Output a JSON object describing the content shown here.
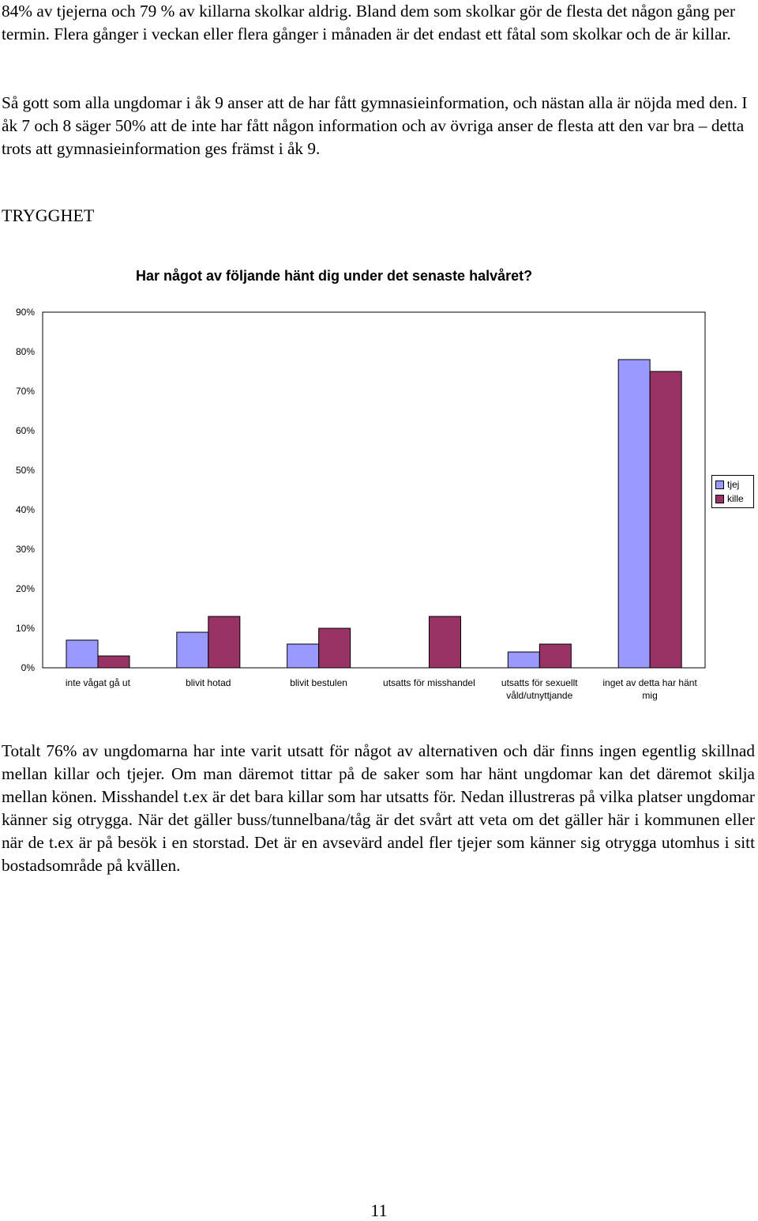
{
  "paragraphs": {
    "p1": "84% av tjejerna och 79 % av killarna skolkar aldrig. Bland dem som skolkar gör de flesta det någon gång per termin. Flera gånger i veckan eller flera gånger i månaden är det endast ett fåtal som skolkar och de är killar.",
    "p2": "Så gott som alla ungdomar i åk 9 anser att de har fått gymnasieinformation, och nästan alla är nöjda med den. I åk 7 och 8 säger 50% att de inte har fått någon information och av övriga anser de flesta att den var bra – detta trots att gymnasieinformation ges främst i åk 9.",
    "p3": "Totalt 76% av ungdomarna har inte varit utsatt för något av alternativen och där finns ingen egentlig skillnad mellan killar och tjejer. Om man däremot tittar på de saker som har hänt ungdomar kan det däremot skilja mellan könen. Misshandel t.ex är det bara killar som har utsatts för. Nedan illustreras på vilka platser ungdomar känner sig otrygga. När det gäller buss/tunnelbana/tåg är det svårt att veta om det gäller här i kommunen eller när de t.ex är på besök i en storstad. Det är en avsevärd andel fler tjejer som känner sig otrygga utomhus i sitt bostadsområde på kvällen."
  },
  "section_heading": "TRYGGHET",
  "page_number": "11",
  "chart_data": {
    "type": "bar",
    "title": "Har något av följande hänt dig under det senaste halvåret?",
    "categories": [
      [
        "inte vågat gå ut"
      ],
      [
        "blivit hotad"
      ],
      [
        "blivit bestulen"
      ],
      [
        "utsatts för misshandel"
      ],
      [
        "utsatts för sexuellt",
        "våld/utnyttjande"
      ],
      [
        "inget av detta har hänt",
        "mig"
      ]
    ],
    "series": [
      {
        "name": "tjej",
        "color": "#9999ff",
        "values": [
          7,
          9,
          6,
          0,
          4,
          78
        ]
      },
      {
        "name": "kille",
        "color": "#993366",
        "values": [
          3,
          13,
          10,
          13,
          6,
          75
        ]
      }
    ],
    "y_ticks": [
      "0%",
      "10%",
      "20%",
      "30%",
      "40%",
      "50%",
      "60%",
      "70%",
      "80%",
      "90%"
    ],
    "ylim": [
      0,
      90
    ],
    "legend_position": "right"
  }
}
